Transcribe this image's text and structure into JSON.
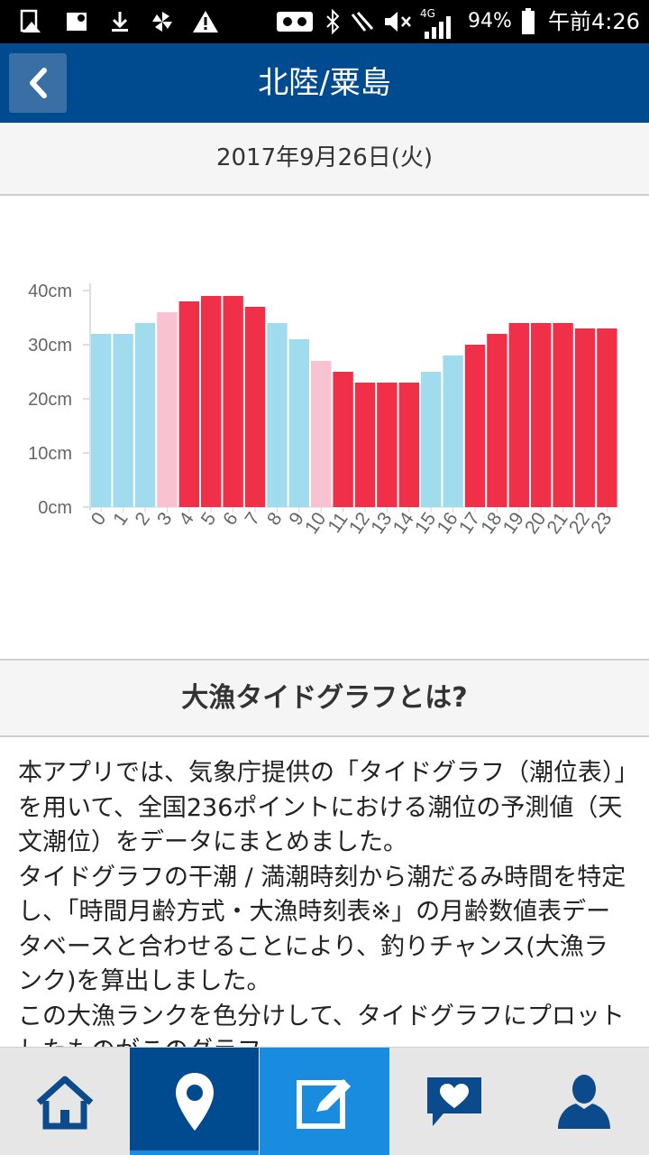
{
  "status_bar": {
    "battery": "94%",
    "network": "4G",
    "time": "午前4:26"
  },
  "header": {
    "title": "北陸/粟島",
    "back_icon": "chevron-left-icon"
  },
  "date": "2017年9月26日(火)",
  "chart_data": {
    "type": "bar",
    "categories": [
      "0",
      "1",
      "2",
      "3",
      "4",
      "5",
      "6",
      "7",
      "8",
      "9",
      "10",
      "11",
      "12",
      "13",
      "14",
      "15",
      "16",
      "17",
      "18",
      "19",
      "20",
      "21",
      "22",
      "23"
    ],
    "values": [
      32,
      32,
      34,
      36,
      38,
      39,
      39,
      37,
      34,
      31,
      27,
      25,
      23,
      23,
      23,
      25,
      28,
      30,
      32,
      34,
      34,
      34,
      33,
      33
    ],
    "ranks": [
      "low",
      "low",
      "low",
      "mid",
      "high",
      "high",
      "high",
      "high",
      "low",
      "low",
      "mid",
      "high",
      "high",
      "high",
      "high",
      "low",
      "low",
      "high",
      "high",
      "high",
      "high",
      "high",
      "high",
      "high"
    ],
    "colors": {
      "low": "#a0dcee",
      "mid": "#f9c2d1",
      "high": "#f03049"
    },
    "ylim": [
      0,
      40
    ],
    "yticks": [
      "0cm",
      "10cm",
      "20cm",
      "30cm",
      "40cm"
    ],
    "grid": false
  },
  "section": {
    "title": "大漁タイドグラフとは?"
  },
  "body": {
    "paragraphs": [
      "本アプリでは、気象庁提供の「タイドグラフ（潮位表）」を用いて、全国236ポイントにおける潮位の予測値（天文潮位）をデータにまとめました。",
      "タイドグラフの干潮 / 満潮時刻から潮だるみ時間を特定し、「時間月齢方式・大漁時刻表※」の月齢数値表データベースと合わせることにより、釣りチャンス(大漁ランク)を算出しました。",
      "この大漁ランクを色分けして、タイドグラフにプロットしたものがこのグラフ..."
    ]
  },
  "bottom_nav": {
    "items": [
      {
        "name": "home",
        "icon": "home-icon"
      },
      {
        "name": "location",
        "icon": "map-pin-icon"
      },
      {
        "name": "edit",
        "icon": "edit-icon"
      },
      {
        "name": "favorites",
        "icon": "heart-message-icon"
      },
      {
        "name": "profile",
        "icon": "user-icon"
      }
    ]
  }
}
